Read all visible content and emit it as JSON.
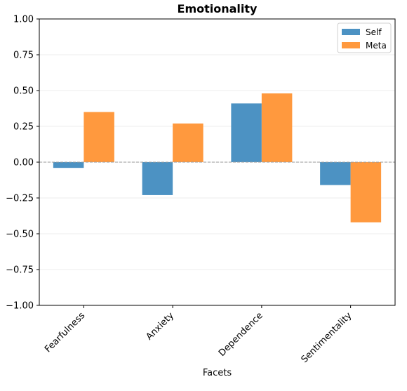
{
  "chart_data": {
    "type": "bar",
    "title": "Emotionality",
    "xlabel": "Facets",
    "ylabel": "",
    "categories": [
      "Fearfulness",
      "Anxiety",
      "Dependence",
      "Sentimentality"
    ],
    "series": [
      {
        "name": "Self",
        "values": [
          -0.04,
          -0.23,
          0.41,
          -0.16
        ],
        "color": "#4c92c3"
      },
      {
        "name": "Meta",
        "values": [
          0.35,
          0.27,
          0.48,
          -0.42
        ],
        "color": "#ff993e"
      }
    ],
    "ylim": [
      -1.0,
      1.0
    ],
    "yticks": [
      "−1.00",
      "−0.75",
      "−0.50",
      "−0.25",
      "0.00",
      "0.25",
      "0.50",
      "0.75",
      "1.00"
    ],
    "ytick_values": [
      -1.0,
      -0.75,
      -0.5,
      -0.25,
      0.0,
      0.25,
      0.5,
      0.75,
      1.0
    ],
    "grid": "horizontal",
    "zero_line": "dashed",
    "legend_position": "top-right"
  }
}
